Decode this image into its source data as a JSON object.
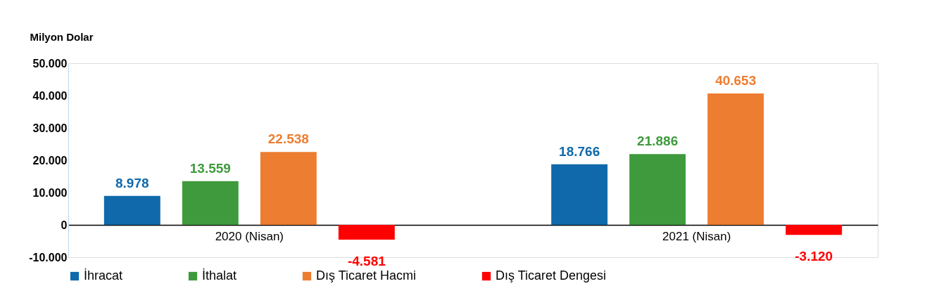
{
  "chart_data": {
    "type": "bar",
    "ylabel": "Milyon Dolar",
    "categories": [
      "2020 (Nisan)",
      "2021 (Nisan)"
    ],
    "series": [
      {
        "name": "İhracat",
        "color": "#0f69ab",
        "values": [
          8978,
          18766
        ],
        "value_labels": [
          "8.978",
          "18.766"
        ]
      },
      {
        "name": "İthalat",
        "color": "#3f9a3d",
        "values": [
          13559,
          21886
        ],
        "value_labels": [
          "13.559",
          "21.886"
        ]
      },
      {
        "name": "Dış Ticaret Hacmi",
        "color": "#ed7d31",
        "values": [
          22538,
          40653
        ],
        "value_labels": [
          "22.538",
          "40.653"
        ]
      },
      {
        "name": "Dış Ticaret Dengesi",
        "color": "#ff0000",
        "values": [
          -4581,
          -3120
        ],
        "value_labels": [
          "-4.581",
          "-3.120"
        ]
      }
    ],
    "ylim": [
      -10000,
      50000
    ],
    "yticks": [
      {
        "value": -10000,
        "label": "-10.000"
      },
      {
        "value": 0,
        "label": "0"
      },
      {
        "value": 10000,
        "label": "10.000"
      },
      {
        "value": 20000,
        "label": "20.000"
      },
      {
        "value": 30000,
        "label": "30.000"
      },
      {
        "value": 40000,
        "label": "40.000"
      },
      {
        "value": 50000,
        "label": "50.000"
      }
    ],
    "grid": false,
    "legend": "bottom"
  }
}
